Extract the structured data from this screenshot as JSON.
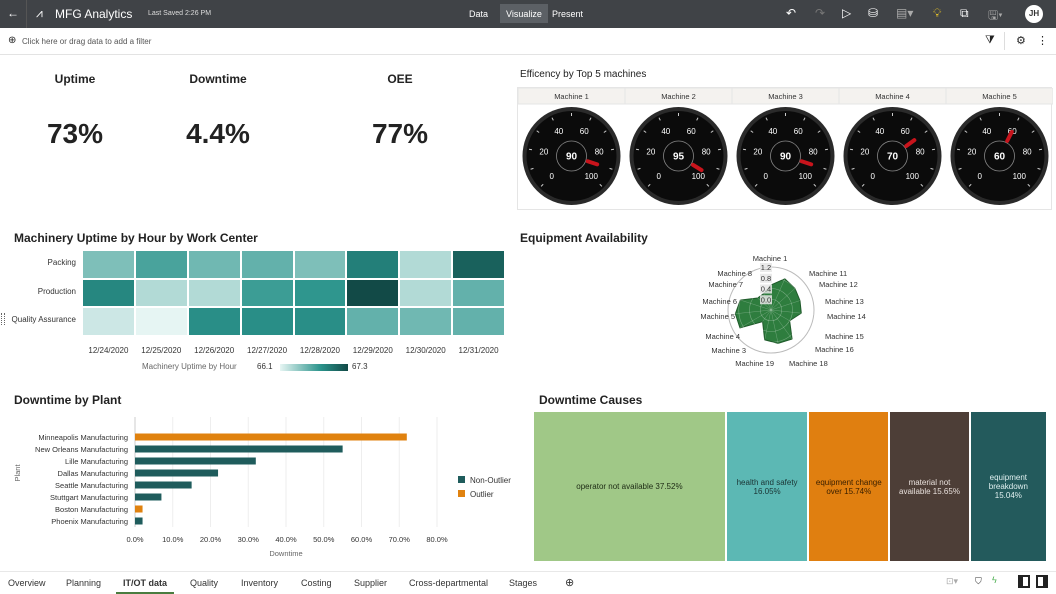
{
  "header": {
    "title": "MFG Analytics",
    "last_saved": "Last Saved 2:26 PM",
    "modes": [
      "Data",
      "Visualize",
      "Present"
    ],
    "active_mode": "Visualize",
    "avatar": "JH"
  },
  "filter": {
    "placeholder": "Click here or drag data to add a filter"
  },
  "kpis": [
    {
      "label": "Uptime",
      "value": "73%"
    },
    {
      "label": "Downtime",
      "value": "4.4%"
    },
    {
      "label": "OEE",
      "value": "77%"
    }
  ],
  "gauges": {
    "title": "Efficency by Top 5 machines",
    "scale": [
      0,
      100
    ],
    "ticks": [
      "0",
      "20",
      "40",
      "60",
      "80",
      "100"
    ],
    "machines": [
      {
        "name": "Machine 1",
        "value": 90
      },
      {
        "name": "Machine 2",
        "value": 95
      },
      {
        "name": "Machine 3",
        "value": 90
      },
      {
        "name": "Machine 4",
        "value": 70
      },
      {
        "name": "Machine 5",
        "value": 60
      }
    ]
  },
  "heatmap": {
    "title": "Machinery Uptime by Hour by Work Center",
    "rows": [
      "Packing",
      "Production",
      "Quality Assurance"
    ],
    "cols": [
      "12/24/2020",
      "12/25/2020",
      "12/26/2020",
      "12/27/2020",
      "12/28/2020",
      "12/29/2020",
      "12/30/2020",
      "12/31/2020"
    ],
    "values": [
      [
        66.5,
        66.7,
        66.55,
        66.6,
        66.5,
        66.95,
        66.3,
        67.15
      ],
      [
        66.9,
        66.3,
        66.3,
        66.75,
        66.8,
        67.3,
        66.3,
        66.6
      ],
      [
        66.2,
        66.1,
        66.85,
        66.85,
        66.85,
        66.6,
        66.55,
        66.6
      ]
    ],
    "legend_label": "Machinery Uptime by Hour",
    "min": "66.1",
    "max": "67.3",
    "color_low": "#e6f5f3",
    "color_high": "#124a47"
  },
  "radar": {
    "title": "Equipment Availability",
    "ticks": [
      "1.2",
      "0.8",
      "0.4",
      "0.0"
    ],
    "labels": [
      "Machine 1",
      "Machine 11",
      "Machine 12",
      "Machine 13",
      "Machine 14",
      "Machine 15",
      "Machine 16",
      "Machine 18",
      "Machine 19",
      "Machine 3",
      "Machine 4",
      "Machine 5",
      "Machine 6",
      "Machine 7",
      "Machine 8"
    ],
    "values": [
      0.7,
      0.95,
      0.9,
      0.85,
      0.85,
      0.6,
      1.0,
      0.95,
      0.85,
      0.4,
      1.0,
      1.0,
      0.9,
      0.5,
      0.5
    ],
    "color": "#2e7d3e"
  },
  "chart_data": {
    "type": "bar",
    "title": "Downtime by Plant",
    "xlabel": "Downtime",
    "ylabel": "Plant",
    "xlim": [
      0,
      80
    ],
    "xticks": [
      "0.0%",
      "10.0%",
      "20.0%",
      "30.0%",
      "40.0%",
      "50.0%",
      "60.0%",
      "70.0%",
      "80.0%"
    ],
    "categories": [
      "Minneapolis Manufacturing",
      "New Orleans Manufacturing",
      "Lille Manufacturing",
      "Dallas Manufacturing",
      "Seattle Manufacturing",
      "Stuttgart Manufacturing",
      "Boston Manufacturing",
      "Phoenix Manufacturing"
    ],
    "values": [
      72,
      55,
      32,
      22,
      15,
      7,
      2,
      2
    ],
    "groups": [
      "Outlier",
      "Non-Outlier",
      "Non-Outlier",
      "Non-Outlier",
      "Non-Outlier",
      "Non-Outlier",
      "Outlier",
      "Non-Outlier"
    ],
    "legend": [
      {
        "name": "Non-Outlier",
        "color": "#1f5c5c"
      },
      {
        "name": "Outlier",
        "color": "#e0820f"
      }
    ],
    "legend_position": "right",
    "grid": true
  },
  "treemap": {
    "title": "Downtime Causes",
    "items": [
      {
        "label": "operator not available 37.52%",
        "value": 37.52,
        "color": "#a0c887",
        "text": "#1d2b14"
      },
      {
        "label": "health and safety 16.05%",
        "value": 16.05,
        "color": "#5cb8b4",
        "text": "#1a3333"
      },
      {
        "label": "equipment change over 15.74%",
        "value": 15.74,
        "color": "#e07f10",
        "text": "#3a2000"
      },
      {
        "label": "material not available 15.65%",
        "value": 15.65,
        "color": "#4d3e37",
        "text": "#e8e0dc"
      },
      {
        "label": "equipment breakdown 15.04%",
        "value": 15.04,
        "color": "#235a5c",
        "text": "#e0f0f0"
      }
    ]
  },
  "tabs": [
    "Overview",
    "Planning",
    "IT/OT data",
    "Quality",
    "Inventory",
    "Costing",
    "Supplier",
    "Cross-departmental",
    "Stages"
  ],
  "active_tab": "IT/OT data"
}
